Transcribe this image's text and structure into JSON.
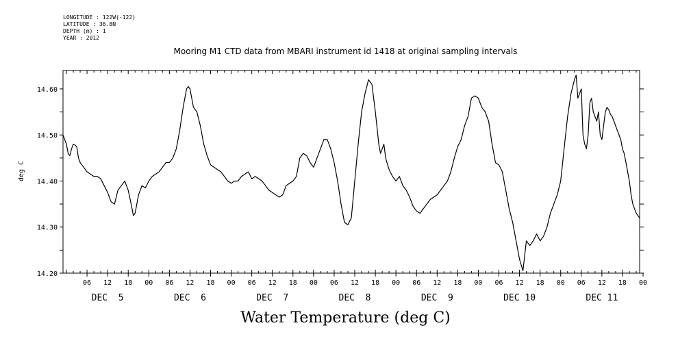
{
  "meta": [
    "LONGITUDE : 122W(-122)",
    "LATITUDE : 36.8N",
    "DEPTH (m) : 1",
    "YEAR : 2012"
  ],
  "chart_data": {
    "type": "line",
    "title": "Mooring M1 CTD data from MBARI instrument id 1418 at original sampling intervals",
    "xlabel": "Water Temperature (deg C)",
    "ylabel": "deg C",
    "ylim": [
      14.2,
      14.64
    ],
    "yticks": [
      14.2,
      14.3,
      14.4,
      14.5,
      14.6
    ],
    "ytick_labels": [
      "14.20",
      "14.30",
      "14.40",
      "14.50",
      "14.60"
    ],
    "x_unit": "hours since 2012-12-05 00:00",
    "xlim": [
      -1,
      167
    ],
    "hour_tick_labels": [
      "06",
      "12",
      "18",
      "00",
      "06",
      "12",
      "18",
      "00",
      "06",
      "12",
      "18",
      "00",
      "06",
      "12",
      "18",
      "00",
      "06",
      "12",
      "18",
      "00",
      "06",
      "12",
      "18",
      "00",
      "06",
      "12",
      "18",
      "00"
    ],
    "day_labels": [
      "DEC  5",
      "DEC  6",
      "DEC  7",
      "DEC  8",
      "DEC  9",
      "DEC 10",
      "DEC 11"
    ],
    "grid": false,
    "series": [
      {
        "points": [
          [
            -1,
            14.5
          ],
          [
            0,
            14.48
          ],
          [
            0.5,
            14.46
          ],
          [
            1,
            14.455
          ],
          [
            1.5,
            14.47
          ],
          [
            2,
            14.48
          ],
          [
            2.5,
            14.478
          ],
          [
            3,
            14.475
          ],
          [
            3.5,
            14.45
          ],
          [
            4,
            14.44
          ],
          [
            5,
            14.43
          ],
          [
            6,
            14.42
          ],
          [
            7,
            14.415
          ],
          [
            8,
            14.41
          ],
          [
            9,
            14.41
          ],
          [
            10,
            14.405
          ],
          [
            11,
            14.39
          ],
          [
            12,
            14.375
          ],
          [
            13,
            14.355
          ],
          [
            14,
            14.35
          ],
          [
            15,
            14.38
          ],
          [
            16,
            14.39
          ],
          [
            17,
            14.4
          ],
          [
            18,
            14.38
          ],
          [
            19,
            14.345
          ],
          [
            19.5,
            14.325
          ],
          [
            20,
            14.33
          ],
          [
            21,
            14.37
          ],
          [
            22,
            14.39
          ],
          [
            23,
            14.385
          ],
          [
            24,
            14.4
          ],
          [
            25,
            14.41
          ],
          [
            26,
            14.415
          ],
          [
            27,
            14.42
          ],
          [
            28,
            14.43
          ],
          [
            29,
            14.44
          ],
          [
            30,
            14.44
          ],
          [
            31,
            14.45
          ],
          [
            32,
            14.47
          ],
          [
            33,
            14.51
          ],
          [
            34,
            14.56
          ],
          [
            35,
            14.6
          ],
          [
            35.5,
            14.605
          ],
          [
            36,
            14.6
          ],
          [
            37,
            14.56
          ],
          [
            38,
            14.55
          ],
          [
            39,
            14.52
          ],
          [
            40,
            14.48
          ],
          [
            41,
            14.455
          ],
          [
            42,
            14.435
          ],
          [
            43,
            14.43
          ],
          [
            44,
            14.425
          ],
          [
            45,
            14.42
          ],
          [
            46,
            14.41
          ],
          [
            47,
            14.4
          ],
          [
            48,
            14.395
          ],
          [
            49,
            14.4
          ],
          [
            50,
            14.4
          ],
          [
            51,
            14.41
          ],
          [
            52,
            14.415
          ],
          [
            53,
            14.42
          ],
          [
            54,
            14.405
          ],
          [
            55,
            14.41
          ],
          [
            56,
            14.405
          ],
          [
            57,
            14.4
          ],
          [
            58,
            14.39
          ],
          [
            59,
            14.38
          ],
          [
            60,
            14.375
          ],
          [
            61,
            14.37
          ],
          [
            62,
            14.365
          ],
          [
            63,
            14.37
          ],
          [
            64,
            14.39
          ],
          [
            65,
            14.395
          ],
          [
            66,
            14.4
          ],
          [
            67,
            14.41
          ],
          [
            68,
            14.45
          ],
          [
            69,
            14.46
          ],
          [
            70,
            14.455
          ],
          [
            71,
            14.44
          ],
          [
            72,
            14.43
          ],
          [
            73,
            14.45
          ],
          [
            74,
            14.47
          ],
          [
            75,
            14.49
          ],
          [
            76,
            14.49
          ],
          [
            77,
            14.47
          ],
          [
            78,
            14.44
          ],
          [
            79,
            14.4
          ],
          [
            80,
            14.35
          ],
          [
            81,
            14.31
          ],
          [
            82,
            14.305
          ],
          [
            83,
            14.32
          ],
          [
            84,
            14.4
          ],
          [
            85,
            14.48
          ],
          [
            86,
            14.55
          ],
          [
            87,
            14.59
          ],
          [
            88,
            14.62
          ],
          [
            89,
            14.61
          ],
          [
            90,
            14.55
          ],
          [
            91,
            14.48
          ],
          [
            91.5,
            14.46
          ],
          [
            92,
            14.47
          ],
          [
            92.5,
            14.48
          ],
          [
            93,
            14.45
          ],
          [
            94,
            14.425
          ],
          [
            95,
            14.41
          ],
          [
            96,
            14.4
          ],
          [
            97,
            14.41
          ],
          [
            98,
            14.39
          ],
          [
            99,
            14.38
          ],
          [
            100,
            14.365
          ],
          [
            101,
            14.345
          ],
          [
            102,
            14.335
          ],
          [
            103,
            14.33
          ],
          [
            104,
            14.34
          ],
          [
            105,
            14.35
          ],
          [
            106,
            14.36
          ],
          [
            107,
            14.365
          ],
          [
            108,
            14.37
          ],
          [
            109,
            14.38
          ],
          [
            110,
            14.39
          ],
          [
            111,
            14.4
          ],
          [
            112,
            14.42
          ],
          [
            113,
            14.45
          ],
          [
            114,
            14.475
          ],
          [
            115,
            14.49
          ],
          [
            116,
            14.52
          ],
          [
            117,
            14.54
          ],
          [
            118,
            14.58
          ],
          [
            119,
            14.585
          ],
          [
            120,
            14.58
          ],
          [
            121,
            14.56
          ],
          [
            122,
            14.55
          ],
          [
            123,
            14.53
          ],
          [
            124,
            14.48
          ],
          [
            125,
            14.44
          ],
          [
            126,
            14.435
          ],
          [
            127,
            14.42
          ],
          [
            128,
            14.38
          ],
          [
            129,
            14.34
          ],
          [
            130,
            14.31
          ],
          [
            131,
            14.27
          ],
          [
            132,
            14.23
          ],
          [
            133,
            14.205
          ],
          [
            134,
            14.27
          ],
          [
            135,
            14.26
          ],
          [
            136,
            14.27
          ],
          [
            137,
            14.285
          ],
          [
            138,
            14.27
          ],
          [
            139,
            14.28
          ],
          [
            140,
            14.3
          ],
          [
            141,
            14.33
          ],
          [
            142,
            14.35
          ],
          [
            143,
            14.37
          ],
          [
            144,
            14.4
          ],
          [
            145,
            14.47
          ],
          [
            146,
            14.54
          ],
          [
            147,
            14.59
          ],
          [
            148,
            14.62
          ],
          [
            148.5,
            14.63
          ],
          [
            149,
            14.58
          ],
          [
            150,
            14.6
          ],
          [
            150.5,
            14.5
          ],
          [
            151,
            14.48
          ],
          [
            151.5,
            14.47
          ],
          [
            152,
            14.5
          ],
          [
            152.5,
            14.57
          ],
          [
            153,
            14.58
          ],
          [
            153.5,
            14.55
          ],
          [
            154,
            14.54
          ],
          [
            154.5,
            14.53
          ],
          [
            155,
            14.55
          ],
          [
            155.5,
            14.5
          ],
          [
            156,
            14.49
          ],
          [
            156.5,
            14.52
          ],
          [
            157,
            14.55
          ],
          [
            157.5,
            14.56
          ],
          [
            158,
            14.555
          ],
          [
            158.5,
            14.545
          ],
          [
            159,
            14.54
          ],
          [
            159.5,
            14.53
          ],
          [
            160,
            14.52
          ],
          [
            160.5,
            14.51
          ],
          [
            161,
            14.5
          ],
          [
            161.5,
            14.49
          ],
          [
            162,
            14.47
          ],
          [
            162.5,
            14.46
          ],
          [
            163,
            14.44
          ],
          [
            163.5,
            14.42
          ],
          [
            164,
            14.4
          ],
          [
            164.5,
            14.37
          ],
          [
            165,
            14.35
          ],
          [
            165.5,
            14.34
          ],
          [
            166,
            14.33
          ],
          [
            166.5,
            14.325
          ],
          [
            167,
            14.32
          ]
        ]
      }
    ]
  }
}
